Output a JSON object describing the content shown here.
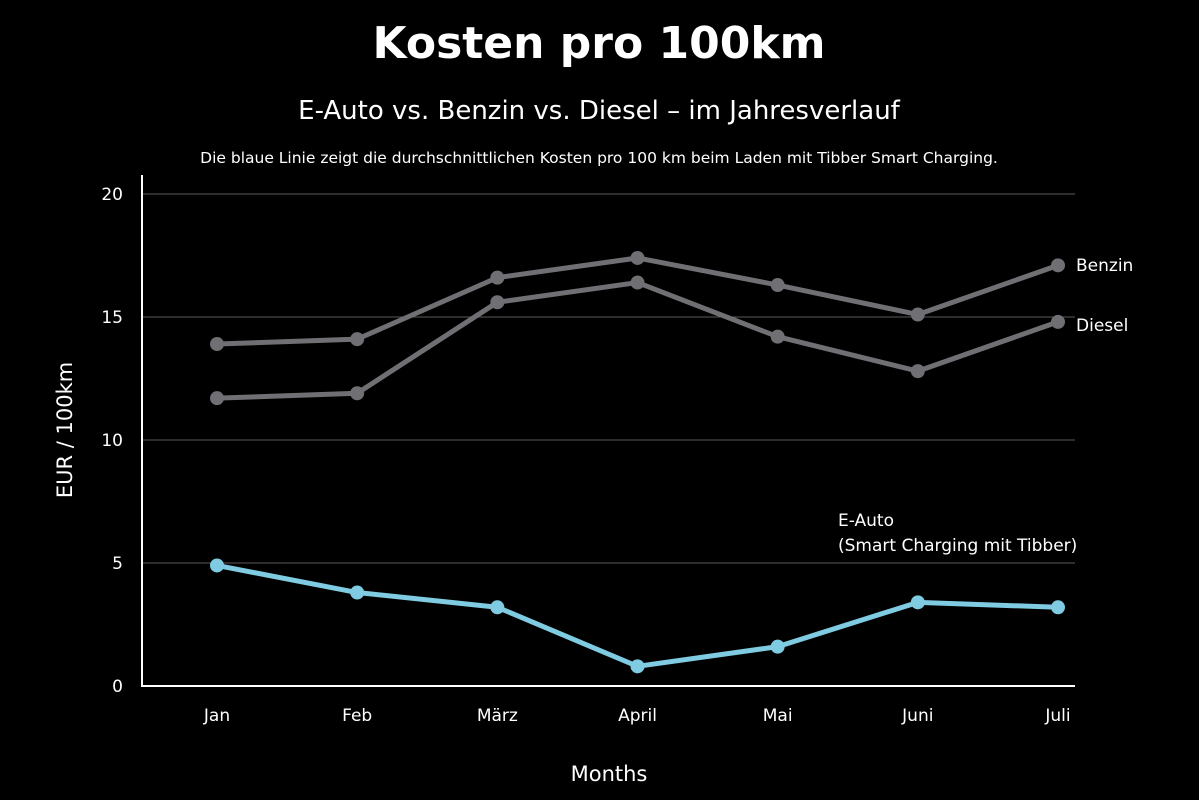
{
  "chart_data": {
    "type": "line",
    "title": "Kosten pro 100km",
    "subtitle": "E-Auto vs. Benzin vs. Diesel – im Jahresverlauf",
    "note": "Die blaue Linie zeigt die durchschnittlichen Kosten pro 100 km beim Laden mit Tibber Smart Charging.",
    "xlabel": "Months",
    "ylabel": "EUR / 100km",
    "categories": [
      "Jan",
      "Feb",
      "März",
      "April",
      "Mai",
      "Juni",
      "Juli"
    ],
    "ylim": [
      0,
      20
    ],
    "yticks": [
      "0",
      "5",
      "10",
      "15",
      "20"
    ],
    "grid": true,
    "series": [
      {
        "name": "Benzin",
        "color": "#6f6f74",
        "values": [
          13.9,
          14.1,
          16.6,
          17.4,
          16.3,
          15.1,
          17.1
        ]
      },
      {
        "name": "Diesel",
        "color": "#6f6f74",
        "values": [
          11.7,
          11.9,
          15.6,
          16.4,
          14.2,
          12.8,
          14.8
        ]
      },
      {
        "name": "E-Auto",
        "name_line2": "(Smart Charging mit Tibber)",
        "color": "#7ecbe2",
        "values": [
          4.9,
          3.8,
          3.2,
          0.8,
          1.6,
          3.4,
          3.2
        ]
      }
    ]
  }
}
